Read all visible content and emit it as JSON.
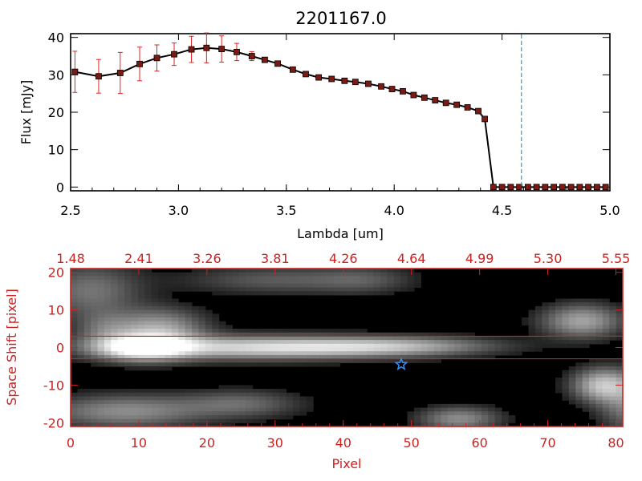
{
  "chart_data": [
    {
      "type": "line",
      "title": "2201167.0",
      "xlabel": "Lambda [um]",
      "ylabel": "Flux [mJy]",
      "xlim": [
        2.5,
        5.0
      ],
      "ylim": [
        -1,
        41
      ],
      "x_ticks": [
        "2.5",
        "3.0",
        "3.5",
        "4.0",
        "4.5",
        "5.0"
      ],
      "x_tick_values": [
        2.5,
        3.0,
        3.5,
        4.0,
        4.5,
        5.0
      ],
      "y_ticks": [
        "0",
        "10",
        "20",
        "30",
        "40"
      ],
      "y_tick_values": [
        0,
        10,
        20,
        30,
        40
      ],
      "line_color": "#000000",
      "marker_color": "#7a1a12",
      "errorbar_color": "#dd2222",
      "vline": {
        "x": 4.59,
        "color": "#2a9bc8",
        "style": "dashed"
      },
      "series": [
        {
          "x": [
            2.52,
            2.63,
            2.73,
            2.82,
            2.9,
            2.98,
            3.06,
            3.13,
            3.2,
            3.27,
            3.34,
            3.4,
            3.46,
            3.53,
            3.59,
            3.65,
            3.71,
            3.77,
            3.82,
            3.88,
            3.94,
            3.99,
            4.04,
            4.09,
            4.14,
            4.19,
            4.24,
            4.29,
            4.34,
            4.39,
            4.42,
            4.46,
            4.5,
            4.54,
            4.58,
            4.62,
            4.66,
            4.7,
            4.74,
            4.78,
            4.82,
            4.86,
            4.9,
            4.94,
            4.98
          ],
          "y": [
            30.8,
            29.6,
            30.5,
            32.9,
            34.5,
            35.5,
            36.8,
            37.2,
            36.9,
            36.1,
            35.0,
            34.0,
            33.0,
            31.4,
            30.2,
            29.3,
            28.9,
            28.4,
            28.1,
            27.6,
            26.9,
            26.2,
            25.6,
            24.6,
            23.9,
            23.2,
            22.5,
            22.0,
            21.3,
            20.3,
            18.2,
            0.0,
            0.0,
            0.0,
            0.0,
            0.0,
            0.0,
            0.0,
            0.0,
            0.0,
            0.0,
            0.0,
            0.0,
            0.0,
            0.0
          ],
          "yerr": [
            5.5,
            4.5,
            5.5,
            4.5,
            3.5,
            3.0,
            3.5,
            4.0,
            3.5,
            2.3,
            1.2,
            0,
            0,
            0,
            0,
            0,
            0,
            0,
            0,
            0,
            0,
            0,
            0,
            0,
            0,
            0,
            0,
            0,
            0,
            0,
            0,
            0,
            0,
            0,
            0,
            0,
            0,
            0,
            0,
            0,
            0,
            0,
            0,
            0,
            0
          ]
        }
      ]
    },
    {
      "type": "heatmap",
      "xlabel": "Pixel",
      "ylabel": "Space Shift [pixel]",
      "xlim": [
        0,
        81
      ],
      "ylim": [
        -21,
        21
      ],
      "x_ticks": [
        "0",
        "10",
        "20",
        "30",
        "40",
        "50",
        "60",
        "70",
        "80"
      ],
      "x_tick_values": [
        0,
        10,
        20,
        30,
        40,
        50,
        60,
        70,
        80
      ],
      "y_ticks": [
        "-20",
        "-10",
        "0",
        "10",
        "20"
      ],
      "y_tick_values": [
        -20,
        -10,
        0,
        10,
        20
      ],
      "top_axis_ticks": [
        "1.48",
        "2.41",
        "3.26",
        "3.81",
        "4.26",
        "4.64",
        "4.99",
        "5.30",
        "5.55"
      ],
      "top_axis_tick_values": [
        0,
        10,
        20,
        30,
        40,
        50,
        60,
        70,
        80
      ],
      "axis_color": "#cc2222",
      "hlines": [
        3,
        -3
      ],
      "hline_color": "#cc2222",
      "marker": {
        "symbol": "star",
        "x": 48.5,
        "y": -4.5,
        "color": "#3a8eea"
      },
      "nx": 82,
      "ny": 42,
      "blobs": [
        {
          "cx": 10.5,
          "cy": 0,
          "sx": 4.5,
          "sy": 2.3,
          "a": 0.95
        },
        {
          "cx": 13,
          "cy": 5,
          "sx": 4.5,
          "sy": 3.5,
          "a": 0.55
        },
        {
          "cx": 24,
          "cy": 0,
          "sx": 14,
          "sy": 2.2,
          "a": 0.6
        },
        {
          "cx": 40,
          "cy": 0,
          "sx": 12,
          "sy": 1.8,
          "a": 0.42
        },
        {
          "cx": 50,
          "cy": 0.5,
          "sx": 9,
          "sy": 1.7,
          "a": 0.28
        },
        {
          "cx": 3,
          "cy": 15,
          "sx": 5,
          "sy": 5,
          "a": 0.35
        },
        {
          "cx": 5,
          "cy": 5,
          "sx": 3,
          "sy": 3,
          "a": 0.25
        },
        {
          "cx": 8,
          "cy": -17,
          "sx": 8,
          "sy": 3,
          "a": 0.45
        },
        {
          "cx": 25,
          "cy": -15,
          "sx": 6,
          "sy": 2.5,
          "a": 0.3
        },
        {
          "cx": 30,
          "cy": 18,
          "sx": 9,
          "sy": 2.5,
          "a": 0.25
        },
        {
          "cx": 43,
          "cy": 18,
          "sx": 5,
          "sy": 2.5,
          "a": 0.2
        },
        {
          "cx": 57,
          "cy": -19,
          "sx": 4,
          "sy": 2.2,
          "a": 0.45
        },
        {
          "cx": 75,
          "cy": 7,
          "sx": 4,
          "sy": 3,
          "a": 0.55
        },
        {
          "cx": 78,
          "cy": -10,
          "sx": 3,
          "sy": 3,
          "a": 0.65
        },
        {
          "cx": 82,
          "cy": -15,
          "sx": 3,
          "sy": 5,
          "a": 0.4
        }
      ]
    }
  ]
}
